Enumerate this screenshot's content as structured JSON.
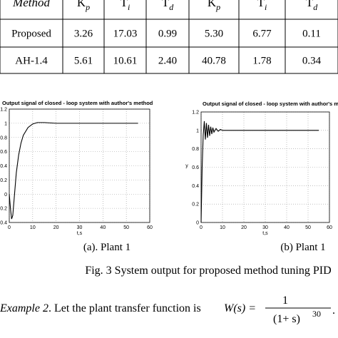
{
  "table": {
    "header": [
      {
        "base": "Method"
      },
      {
        "base": "K",
        "sub": "p"
      },
      {
        "base": "T",
        "sub": "i"
      },
      {
        "base": "T",
        "sub": "d"
      },
      {
        "base": "K",
        "sub": "p"
      },
      {
        "base": "T",
        "sub": "i"
      },
      {
        "base": "T",
        "sub": "d"
      }
    ],
    "rows": [
      [
        "Proposed",
        "3.26",
        "17.03",
        "0.99",
        "5.30",
        "6.77",
        "0.11"
      ],
      [
        "AH-1.4",
        "5.61",
        "10.61",
        "2.40",
        "40.78",
        "1.78",
        "0.34"
      ]
    ]
  },
  "chart_data": [
    {
      "type": "line",
      "title": "Output signal of closed - loop system with author's method",
      "x_label": "t,s",
      "xlim": [
        0,
        60
      ],
      "xticks": [
        0,
        10,
        20,
        30,
        40,
        50,
        60
      ],
      "ylim": [
        -0.4,
        1.2
      ],
      "yticks": [
        -0.4,
        -0.2,
        0,
        0.2,
        0.4,
        0.6,
        0.8,
        1,
        1.2
      ],
      "grid": true,
      "series": [
        {
          "color": "#000000",
          "x": [
            0,
            0.5,
            1,
            1.5,
            2,
            3,
            4,
            5,
            6,
            8,
            10,
            12,
            15,
            20,
            30,
            40,
            50,
            55
          ],
          "values": [
            0,
            -0.2,
            -0.35,
            -0.3,
            -0.1,
            0.3,
            0.55,
            0.72,
            0.83,
            0.94,
            0.99,
            1.01,
            1.01,
            1,
            1,
            1,
            1,
            1
          ]
        }
      ]
    },
    {
      "type": "line",
      "title": "Output signal of closed - loop system with author's method",
      "x_label": "t,s",
      "y_label": "y",
      "xlim": [
        0,
        60
      ],
      "xticks": [
        0,
        10,
        20,
        30,
        40,
        50,
        60
      ],
      "ylim": [
        0,
        1.2
      ],
      "yticks": [
        0,
        0.2,
        0.4,
        0.6,
        0.8,
        1,
        1.2
      ],
      "grid": true,
      "series": [
        {
          "color": "#000000",
          "x": [
            0,
            0.5,
            1,
            1.5,
            2,
            2.5,
            3,
            3.5,
            4,
            4.5,
            5,
            5.5,
            6,
            7,
            8,
            9,
            10,
            12,
            15,
            20,
            30,
            40,
            50,
            55
          ],
          "values": [
            0,
            0.6,
            0.95,
            1.1,
            0.9,
            1.08,
            0.92,
            1.06,
            0.94,
            1.04,
            0.96,
            1.03,
            0.98,
            1.02,
            0.99,
            1.01,
            1,
            1,
            1,
            1,
            1,
            1,
            1,
            1
          ]
        }
      ]
    }
  ],
  "subcaptions": [
    "(a). Plant 1",
    "(b) Plant 1"
  ],
  "caption": "Fig. 3 System output for proposed method tuning PID",
  "example": {
    "label": "Example 2",
    "text": ". Let the plant transfer function is ",
    "lhs": "W(s) =",
    "numerator": "1",
    "denominator": "(1+ s)",
    "exponent": "30",
    "end": "."
  }
}
